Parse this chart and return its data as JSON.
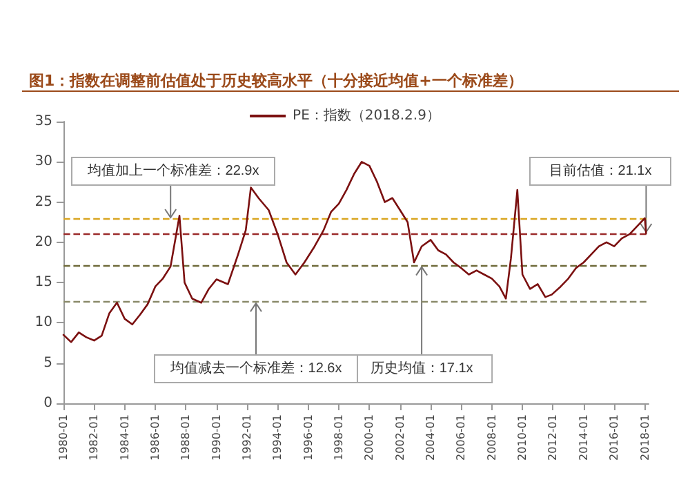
{
  "chart_data": {
    "type": "line",
    "title": "图1：指数在调整前估值处于历史较高水平（十分接近均值+一个标准差）",
    "x": [
      "1980-01",
      "1980-07",
      "1981-01",
      "1981-07",
      "1982-01",
      "1982-07",
      "1983-01",
      "1983-07",
      "1984-01",
      "1984-07",
      "1985-01",
      "1985-07",
      "1986-01",
      "1986-07",
      "1987-01",
      "1987-08",
      "1987-12",
      "1988-06",
      "1989-01",
      "1989-07",
      "1990-01",
      "1990-10",
      "1991-06",
      "1991-12",
      "1992-04",
      "1992-10",
      "1993-06",
      "1994-01",
      "1994-08",
      "1995-03",
      "1995-10",
      "1996-06",
      "1997-01",
      "1997-07",
      "1998-01",
      "1998-07",
      "1999-01",
      "1999-07",
      "2000-01",
      "2000-07",
      "2001-01",
      "2001-07",
      "2002-01",
      "2002-07",
      "2002-12",
      "2003-06",
      "2004-01",
      "2004-07",
      "2005-01",
      "2005-07",
      "2006-01",
      "2006-07",
      "2007-01",
      "2007-07",
      "2008-01",
      "2008-07",
      "2008-12",
      "2009-04",
      "2009-09",
      "2010-01",
      "2010-07",
      "2011-01",
      "2011-07",
      "2011-12",
      "2012-07",
      "2013-01",
      "2013-07",
      "2014-01",
      "2014-07",
      "2015-01",
      "2015-07",
      "2016-01",
      "2016-07",
      "2017-01",
      "2017-07",
      "2018-01",
      "2018-02"
    ],
    "series": [
      {
        "name": "PE：指数（2018.2.9）",
        "color": "#7b1010",
        "values": [
          8.5,
          7.6,
          8.8,
          8.2,
          7.8,
          8.4,
          11.2,
          12.5,
          10.5,
          9.8,
          11.0,
          12.3,
          14.5,
          15.5,
          17.0,
          23.3,
          15.0,
          13.0,
          12.5,
          14.2,
          15.4,
          14.8,
          18.5,
          21.5,
          26.8,
          25.5,
          24.0,
          21.0,
          17.5,
          16.0,
          17.5,
          19.5,
          21.5,
          23.8,
          24.8,
          26.5,
          28.5,
          30.0,
          29.5,
          27.5,
          25.0,
          25.5,
          24.0,
          22.5,
          17.5,
          19.5,
          20.3,
          19.0,
          18.5,
          17.5,
          16.8,
          16.0,
          16.5,
          16.0,
          15.5,
          14.5,
          13.0,
          18.0,
          26.5,
          16.0,
          14.2,
          14.8,
          13.2,
          13.5,
          14.5,
          15.5,
          16.8,
          17.5,
          18.5,
          19.5,
          20.0,
          19.5,
          20.5,
          21.0,
          22.0,
          23.0,
          21.1
        ]
      }
    ],
    "xlim": [
      "1980-01",
      "2018-04"
    ],
    "xticks": [
      "1980-01",
      "1982-01",
      "1984-01",
      "1986-01",
      "1988-01",
      "1990-01",
      "1992-01",
      "1994-01",
      "1996-01",
      "1998-01",
      "2000-01",
      "2002-01",
      "2004-01",
      "2006-01",
      "2008-01",
      "2010-01",
      "2012-01",
      "2014-01",
      "2016-01",
      "2018-01"
    ],
    "ylim": [
      0,
      35
    ],
    "yticks": [
      0,
      5,
      10,
      15,
      20,
      25,
      30,
      35
    ],
    "grid": false,
    "legend": "top",
    "marker": "none",
    "line_style": "solid",
    "ref_lines": [
      {
        "axis": "y",
        "value": 22.9,
        "color": "#d9a520",
        "line_style": "dashed"
      },
      {
        "axis": "y",
        "value": 21.1,
        "color": "#9b2a2a",
        "line_style": "dashed"
      },
      {
        "axis": "y",
        "value": 17.1,
        "color": "#6f6a3a",
        "line_style": "dashed"
      },
      {
        "axis": "y",
        "value": 12.6,
        "color": "#8a8a6a",
        "line_style": "dashed"
      }
    ],
    "annotations": [
      {
        "text": "均值加上一个标准差：22.9x",
        "x": "1987-01",
        "y": 22.9
      },
      {
        "text": "目前估值：21.1x",
        "x": "2018-02",
        "y": 21.1
      },
      {
        "text": "历史均值：17.1x",
        "x": "2003-06",
        "y": 17.1
      },
      {
        "text": "均值减去一个标准差：12.6x",
        "x": "1992-08",
        "y": 12.6
      }
    ]
  }
}
